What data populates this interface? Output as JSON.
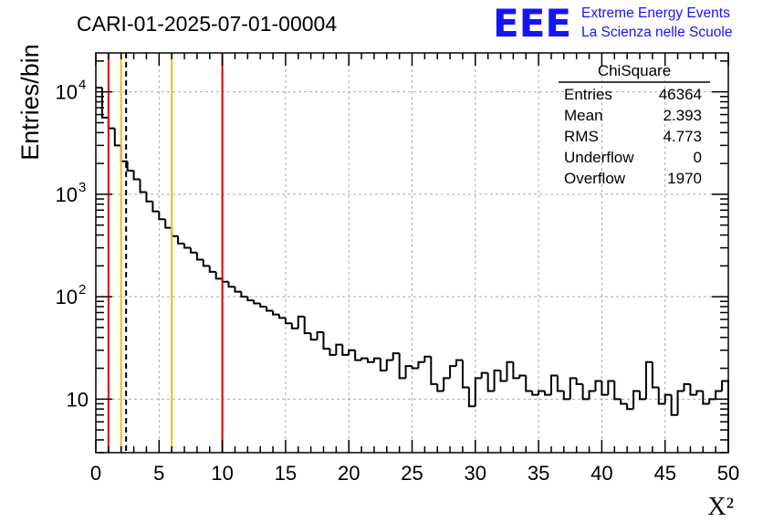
{
  "header": {
    "run_title": "CARI-01-2025-07-01-00004",
    "logo_text": "EEE",
    "logo_line1": "Extreme Energy Events",
    "logo_line2": "La Scienza nelle Scuole"
  },
  "stats_box": {
    "title": "ChiSquare",
    "rows": [
      {
        "label": "Entries",
        "value": "46364"
      },
      {
        "label": "Mean",
        "value": "2.393"
      },
      {
        "label": "RMS",
        "value": "4.773"
      },
      {
        "label": "Underflow",
        "value": "0"
      },
      {
        "label": "Overflow",
        "value": "1970"
      }
    ]
  },
  "colors": {
    "histogram": "#000000",
    "red_line": "#dd0000",
    "yellow_line": "#f0c000",
    "mean_line": "#000000",
    "grid": "#aaaaaa",
    "logo": "#1414ff"
  },
  "chart_data": {
    "type": "histogram",
    "title": "CARI-01-2025-07-01-00004",
    "xlabel": "X²",
    "ylabel": "Entries/bin",
    "xlim": [
      0,
      50
    ],
    "ylim": [
      3,
      24000
    ],
    "yscale": "log",
    "grid": true,
    "bin_width": 0.5,
    "bin_start": 0,
    "counts": [
      11000,
      5600,
      4400,
      3000,
      2100,
      1700,
      1400,
      1050,
      850,
      680,
      570,
      470,
      390,
      330,
      300,
      270,
      230,
      200,
      175,
      150,
      140,
      125,
      112,
      100,
      92,
      86,
      80,
      73,
      67,
      62,
      55,
      49,
      64,
      44,
      38,
      45,
      31,
      27,
      34,
      27,
      30,
      24,
      25,
      23,
      25,
      19,
      24,
      28,
      16,
      21,
      20,
      23,
      26,
      14,
      12,
      16,
      21,
      24,
      13,
      8.5,
      16,
      18,
      12,
      19,
      15,
      23,
      16,
      17,
      12,
      11,
      12,
      11,
      17,
      12,
      10,
      16,
      14,
      10,
      12,
      15,
      11,
      15,
      10,
      9,
      8,
      12,
      10,
      23,
      13,
      9,
      11,
      7,
      12,
      14,
      11,
      12,
      9,
      10,
      12,
      15
    ],
    "x_ticks": [
      0,
      5,
      10,
      15,
      20,
      25,
      30,
      35,
      40,
      45,
      50
    ],
    "x_tick_labels": [
      "0",
      "5",
      "10",
      "15",
      "20",
      "25",
      "30",
      "35",
      "40",
      "45",
      "50"
    ],
    "y_ticks": [
      10,
      100,
      1000,
      10000
    ],
    "y_tick_base": "10",
    "y_tick_exponents": [
      "",
      "2",
      "3",
      "4"
    ],
    "vertical_lines": [
      {
        "x": 1,
        "color": "red",
        "style": "solid"
      },
      {
        "x": 10,
        "color": "red",
        "style": "solid"
      },
      {
        "x": 2,
        "color": "yellow",
        "style": "solid"
      },
      {
        "x": 6,
        "color": "yellow",
        "style": "solid"
      },
      {
        "x": 2.393,
        "color": "black",
        "style": "dashed",
        "meaning": "mean"
      }
    ]
  }
}
